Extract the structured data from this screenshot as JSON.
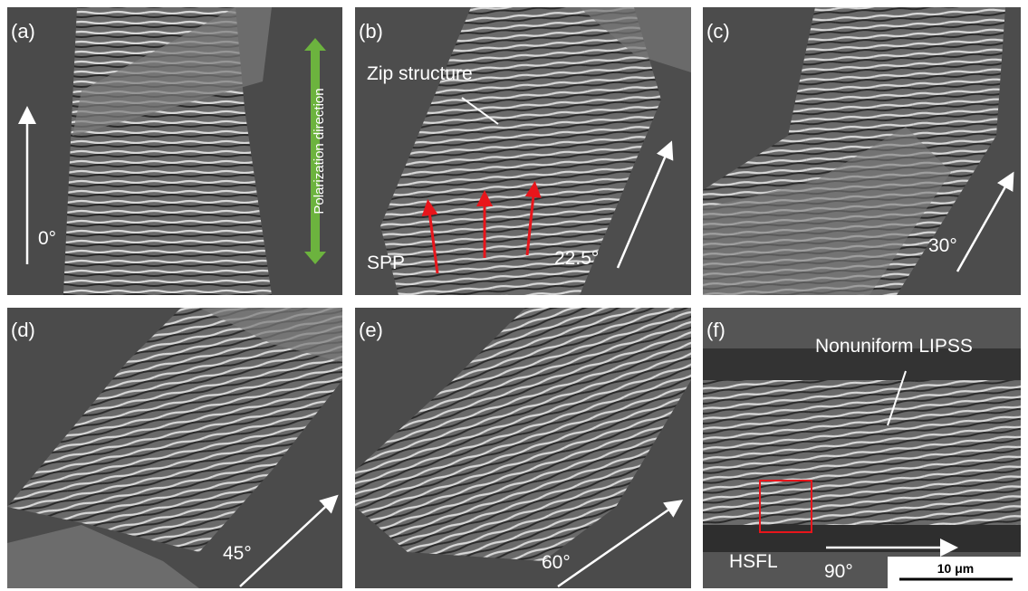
{
  "panels": [
    {
      "label": "(a)",
      "angle": "0°",
      "annotation": "Polarization direction"
    },
    {
      "label": "(b)",
      "angle": "22.5°",
      "annotation": "Zip structure",
      "annotation2": "SPP"
    },
    {
      "label": "(c)",
      "angle": "30°"
    },
    {
      "label": "(d)",
      "angle": "45°"
    },
    {
      "label": "(e)",
      "angle": "60°"
    },
    {
      "label": "(f)",
      "angle": "90°",
      "annotation": "Nonuniform LIPSS",
      "annotation2": "HSFL",
      "scale_bar": "10 μm"
    }
  ]
}
